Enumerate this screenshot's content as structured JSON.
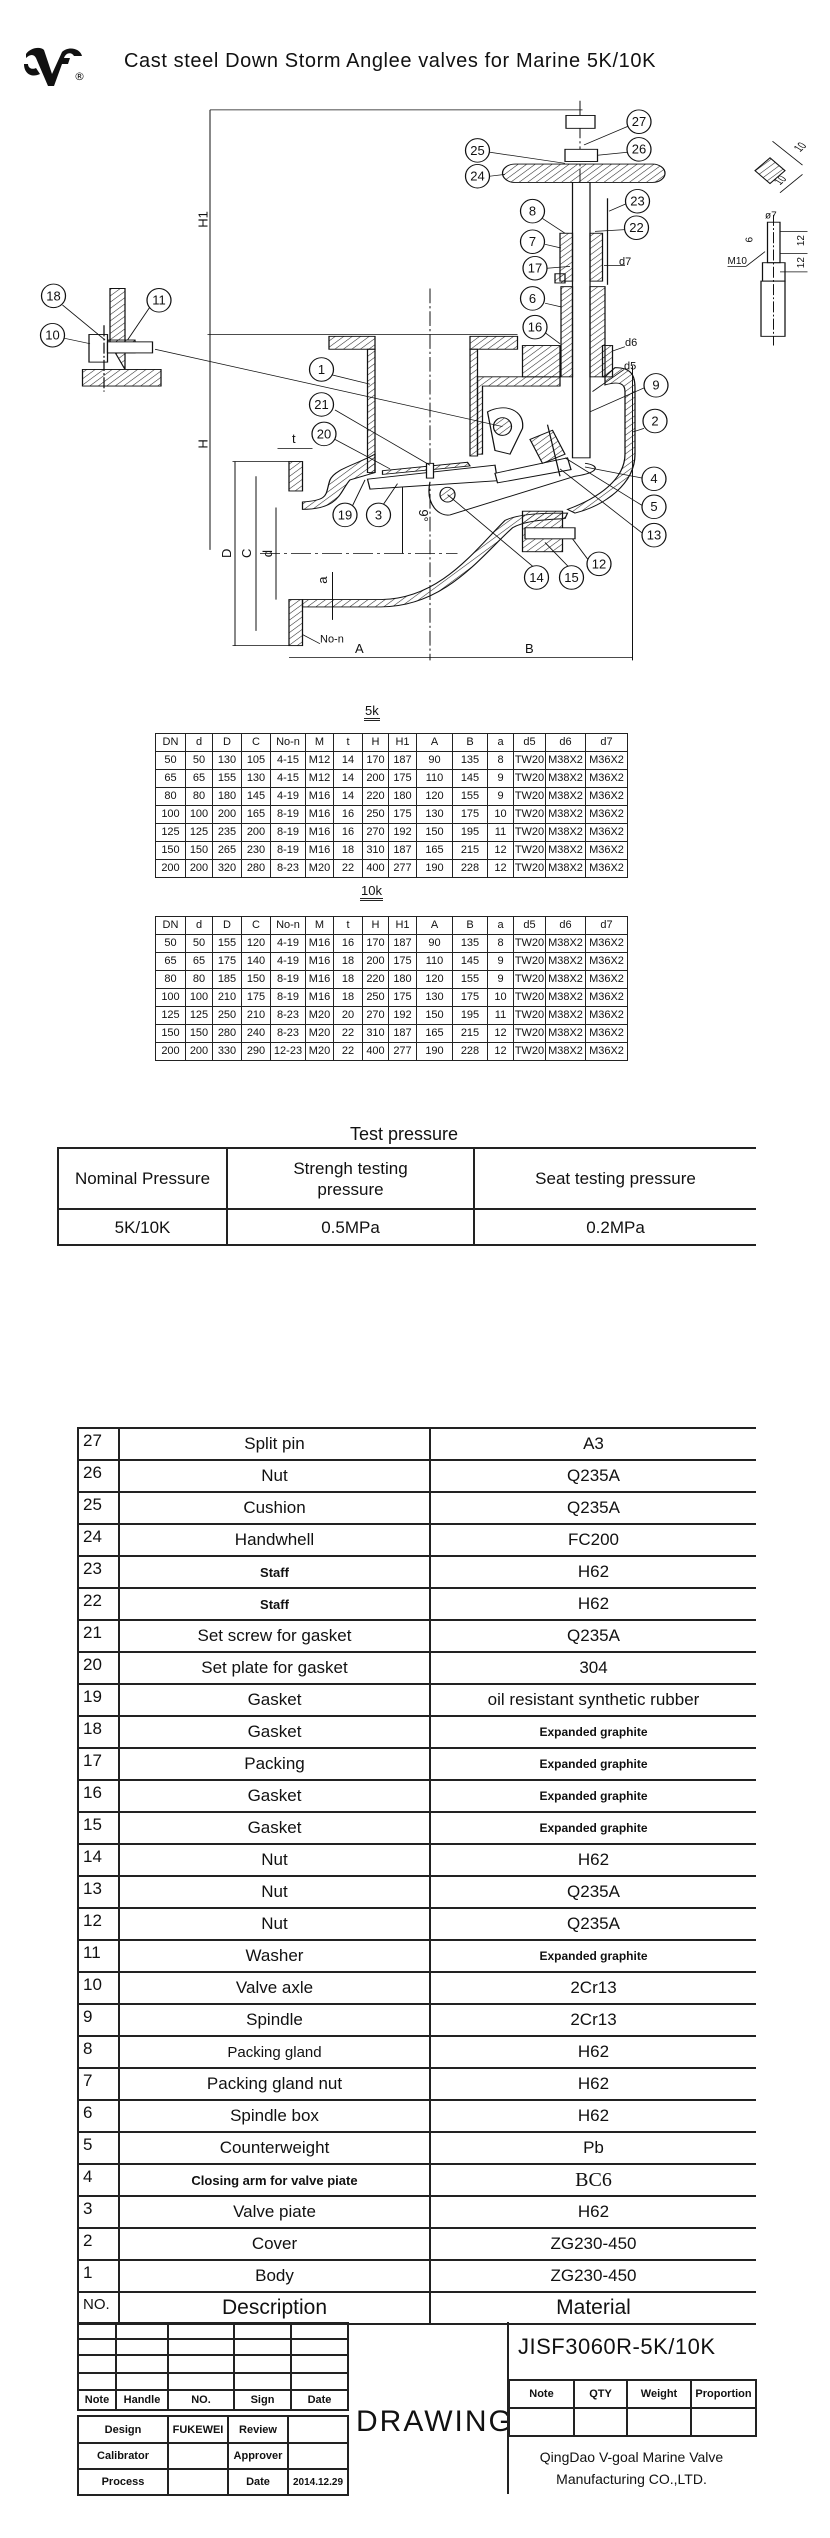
{
  "header": {
    "logo_icon": "v-goal-logo",
    "logo_mark": "®",
    "title": "Cast steel Down Storm Anglee valves for Marine 5K/10K"
  },
  "drawing": {
    "balloons": {
      "b1": "1",
      "b2": "2",
      "b3": "3",
      "b4": "4",
      "b5": "5",
      "b6": "6",
      "b7": "7",
      "b8": "8",
      "b9": "9",
      "b10": "10",
      "b11": "11",
      "b12": "12",
      "b13": "13",
      "b14": "14",
      "b15": "15",
      "b16": "16",
      "b17": "17",
      "b18": "18",
      "b19": "19",
      "b20": "20",
      "b21": "21",
      "b22": "22",
      "b23": "23",
      "b24": "24",
      "b25": "25",
      "b26": "26",
      "b27": "27"
    },
    "dims": {
      "H1": "H1",
      "H": "H",
      "D": "D",
      "C": "C",
      "d": "d",
      "a": "a",
      "t": "t",
      "A": "A",
      "B": "B",
      "No_n": "No-n",
      "d5": "d5",
      "d6": "d6",
      "d7": "d7",
      "angle": "9°"
    },
    "detail": {
      "w1": "10",
      "w2": "10",
      "dia": "ø7",
      "l6": "6",
      "l12a": "12",
      "l12b": "12",
      "thread": "M10"
    }
  },
  "tables": {
    "columns": [
      "DN",
      "d",
      "D",
      "C",
      "No-n",
      "M",
      "t",
      "H",
      "H1",
      "A",
      "B",
      "a",
      "d5",
      "d6",
      "d7"
    ],
    "k5": {
      "label": "5k",
      "rows": [
        [
          "50",
          "50",
          "130",
          "105",
          "4-15",
          "M12",
          "14",
          "170",
          "187",
          "90",
          "135",
          "8",
          "TW20",
          "M38X2",
          "M36X2"
        ],
        [
          "65",
          "65",
          "155",
          "130",
          "4-15",
          "M12",
          "14",
          "200",
          "175",
          "110",
          "145",
          "9",
          "TW20",
          "M38X2",
          "M36X2"
        ],
        [
          "80",
          "80",
          "180",
          "145",
          "4-19",
          "M16",
          "14",
          "220",
          "180",
          "120",
          "155",
          "9",
          "TW20",
          "M38X2",
          "M36X2"
        ],
        [
          "100",
          "100",
          "200",
          "165",
          "8-19",
          "M16",
          "16",
          "250",
          "175",
          "130",
          "175",
          "10",
          "TW20",
          "M38X2",
          "M36X2"
        ],
        [
          "125",
          "125",
          "235",
          "200",
          "8-19",
          "M16",
          "16",
          "270",
          "192",
          "150",
          "195",
          "11",
          "TW20",
          "M38X2",
          "M36X2"
        ],
        [
          "150",
          "150",
          "265",
          "230",
          "8-19",
          "M16",
          "18",
          "310",
          "187",
          "165",
          "215",
          "12",
          "TW20",
          "M38X2",
          "M36X2"
        ],
        [
          "200",
          "200",
          "320",
          "280",
          "8-23",
          "M20",
          "22",
          "400",
          "277",
          "190",
          "228",
          "12",
          "TW20",
          "M38X2",
          "M36X2"
        ]
      ]
    },
    "k10": {
      "label": "10k",
      "rows": [
        [
          "50",
          "50",
          "155",
          "120",
          "4-19",
          "M16",
          "16",
          "170",
          "187",
          "90",
          "135",
          "8",
          "TW20",
          "M38X2",
          "M36X2"
        ],
        [
          "65",
          "65",
          "175",
          "140",
          "4-19",
          "M16",
          "18",
          "200",
          "175",
          "110",
          "145",
          "9",
          "TW20",
          "M38X2",
          "M36X2"
        ],
        [
          "80",
          "80",
          "185",
          "150",
          "8-19",
          "M16",
          "18",
          "220",
          "180",
          "120",
          "155",
          "9",
          "TW20",
          "M38X2",
          "M36X2"
        ],
        [
          "100",
          "100",
          "210",
          "175",
          "8-19",
          "M16",
          "18",
          "250",
          "175",
          "130",
          "175",
          "10",
          "TW20",
          "M38X2",
          "M36X2"
        ],
        [
          "125",
          "125",
          "250",
          "210",
          "8-23",
          "M20",
          "20",
          "270",
          "192",
          "150",
          "195",
          "11",
          "TW20",
          "M38X2",
          "M36X2"
        ],
        [
          "150",
          "150",
          "280",
          "240",
          "8-23",
          "M20",
          "22",
          "310",
          "187",
          "165",
          "215",
          "12",
          "TW20",
          "M38X2",
          "M36X2"
        ],
        [
          "200",
          "200",
          "330",
          "290",
          "12-23",
          "M20",
          "22",
          "400",
          "277",
          "190",
          "228",
          "12",
          "TW20",
          "M38X2",
          "M36X2"
        ]
      ]
    }
  },
  "test_pressure": {
    "title": "Test pressure",
    "headers": [
      "Nominal Pressure",
      "Strengh testing pressure",
      "Seat testing pressure"
    ],
    "row": [
      "5K/10K",
      "0.5MPa",
      "0.2MPa"
    ]
  },
  "parts": {
    "headers": [
      "NO.",
      "Description",
      "Material"
    ],
    "rows": [
      [
        "27",
        "Split pin",
        "A3"
      ],
      [
        "26",
        "Nut",
        "Q235A"
      ],
      [
        "25",
        "Cushion",
        "Q235A"
      ],
      [
        "24",
        "Handwhell",
        "FC200"
      ],
      [
        "23",
        "Staff",
        "H62"
      ],
      [
        "22",
        "Staff",
        "H62"
      ],
      [
        "21",
        "Set screw for gasket",
        "Q235A"
      ],
      [
        "20",
        "Set plate for gasket",
        "304"
      ],
      [
        "19",
        "Gasket",
        "oil resistant synthetic rubber"
      ],
      [
        "18",
        "Gasket",
        "Expanded graphite"
      ],
      [
        "17",
        "Packing",
        "Expanded graphite"
      ],
      [
        "16",
        "Gasket",
        "Expanded graphite"
      ],
      [
        "15",
        "Gasket",
        "Expanded graphite"
      ],
      [
        "14",
        "Nut",
        "H62"
      ],
      [
        "13",
        "Nut",
        "Q235A"
      ],
      [
        "12",
        "Nut",
        "Q235A"
      ],
      [
        "11",
        "Washer",
        "Expanded graphite"
      ],
      [
        "10",
        "Valve axle",
        "2Cr13"
      ],
      [
        "9",
        "Spindle",
        "2Cr13"
      ],
      [
        "8",
        "Packing gland",
        "H62"
      ],
      [
        "7",
        "Packing gland nut",
        "H62"
      ],
      [
        "6",
        "Spindle box",
        "H62"
      ],
      [
        "5",
        "Counterweight",
        "Pb"
      ],
      [
        "4",
        "Closing arm for valve piate",
        "BC6"
      ],
      [
        "3",
        "Valve piate",
        "H62"
      ],
      [
        "2",
        "Cover",
        "ZG230-450"
      ],
      [
        "1",
        "Body",
        "ZG230-450"
      ]
    ]
  },
  "title_block": {
    "sign_headers": [
      "Note",
      "Handle",
      "NO.",
      "Sign",
      "Date"
    ],
    "design_label": "Design",
    "designer": "FUKEWEI",
    "review_label": "Review",
    "calibrator_label": "Calibrator",
    "approver_label": "Approver",
    "process_label": "Process",
    "date_label": "Date",
    "date": "2014.12.29",
    "drawing_word": "DRAWING",
    "code": "JISF3060R-5K/10K",
    "info_headers": [
      "Note",
      "QTY",
      "Weight",
      "Proportion"
    ],
    "company_line1": "QingDao V-goal Marine Valve",
    "company_line2": "Manufacturing CO.,LTD."
  }
}
